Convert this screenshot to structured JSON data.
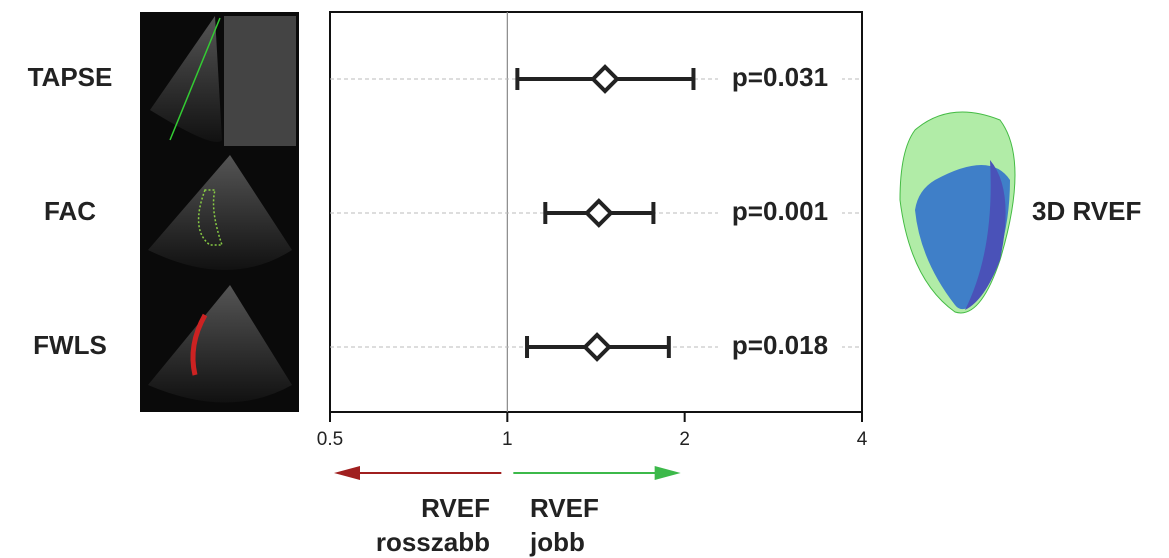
{
  "chart_data": {
    "type": "forest",
    "categories": [
      "TAPSE",
      "FAC",
      "FWLS"
    ],
    "values": [
      1.465,
      1.43,
      1.42
    ],
    "lower": [
      1.04,
      1.16,
      1.08
    ],
    "upper": [
      2.07,
      1.77,
      1.88
    ],
    "p_values": [
      "p=0.031",
      "p=0.001",
      "p=0.018"
    ],
    "xscale": "log",
    "xlim": [
      0.5,
      4
    ],
    "xticks": [
      0.5,
      1,
      2,
      4
    ],
    "reference_line": 1,
    "grid": true,
    "color": "#222222",
    "left_arrow": {
      "color": "#a01f1f",
      "lines": [
        "RVEF",
        "rosszabb"
      ]
    },
    "right_arrow": {
      "color": "#3cb94a",
      "lines": [
        "RVEF",
        "jobb"
      ]
    },
    "side_label": "3D RVEF"
  }
}
